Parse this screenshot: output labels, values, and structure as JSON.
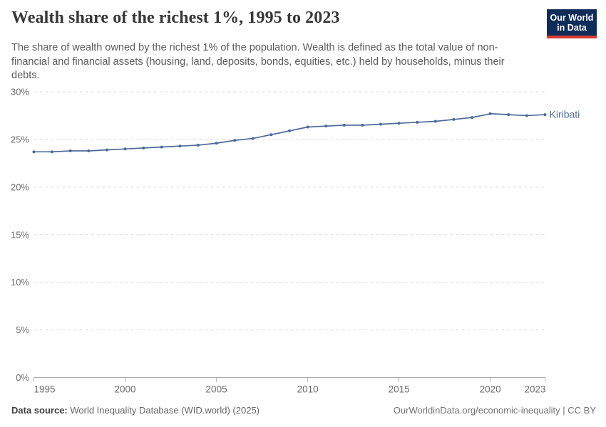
{
  "header": {
    "title": "Wealth share of the richest 1%, 1995 to 2023",
    "subtitle": "The share of wealth owned by the richest 1% of the population. Wealth is defined as the total value of non-financial and financial assets (housing, land, deposits, bonds, equities, etc.) held by households, minus their debts.",
    "logo": {
      "line1": "Our World",
      "line2": "in Data",
      "bg_color": "#102d59",
      "accent_color": "#d93a32"
    }
  },
  "chart_data": {
    "type": "line",
    "title": "Wealth share of the richest 1%, 1995 to 2023",
    "x": [
      1995,
      1996,
      1997,
      1998,
      1999,
      2000,
      2001,
      2002,
      2003,
      2004,
      2005,
      2006,
      2007,
      2008,
      2009,
      2010,
      2011,
      2012,
      2013,
      2014,
      2015,
      2016,
      2017,
      2018,
      2019,
      2020,
      2021,
      2022,
      2023
    ],
    "series": [
      {
        "name": "Kiribati",
        "color": "#4c6a99",
        "values": [
          23.7,
          23.7,
          23.8,
          23.8,
          23.9,
          24.0,
          24.1,
          24.2,
          24.3,
          24.4,
          24.6,
          24.9,
          25.1,
          25.5,
          25.9,
          26.3,
          26.4,
          26.5,
          26.5,
          26.6,
          26.7,
          26.8,
          26.9,
          27.1,
          27.3,
          27.7,
          27.6,
          27.5,
          27.6
        ]
      }
    ],
    "xlabel": "",
    "ylabel": "",
    "xlim": [
      1995,
      2023
    ],
    "ylim": [
      0,
      30
    ],
    "xticks": [
      1995,
      2000,
      2005,
      2010,
      2015,
      2020,
      2023
    ],
    "xtick_labels": [
      "1995",
      "2000",
      "2005",
      "2010",
      "2015",
      "2020",
      "2023"
    ],
    "yticks": [
      0,
      5,
      10,
      15,
      20,
      25,
      30
    ],
    "ytick_labels": [
      "0%",
      "5%",
      "10%",
      "15%",
      "20%",
      "25%",
      "30%"
    ],
    "grid": true,
    "gridline_style": "dashed",
    "legend_position": "end-of-line",
    "marker": "dot"
  },
  "footer": {
    "source_label": "Data source:",
    "source_text": " World Inequality Database (WID.world) (2025)",
    "right_text": "OurWorldinData.org/economic-inequality | CC BY"
  }
}
